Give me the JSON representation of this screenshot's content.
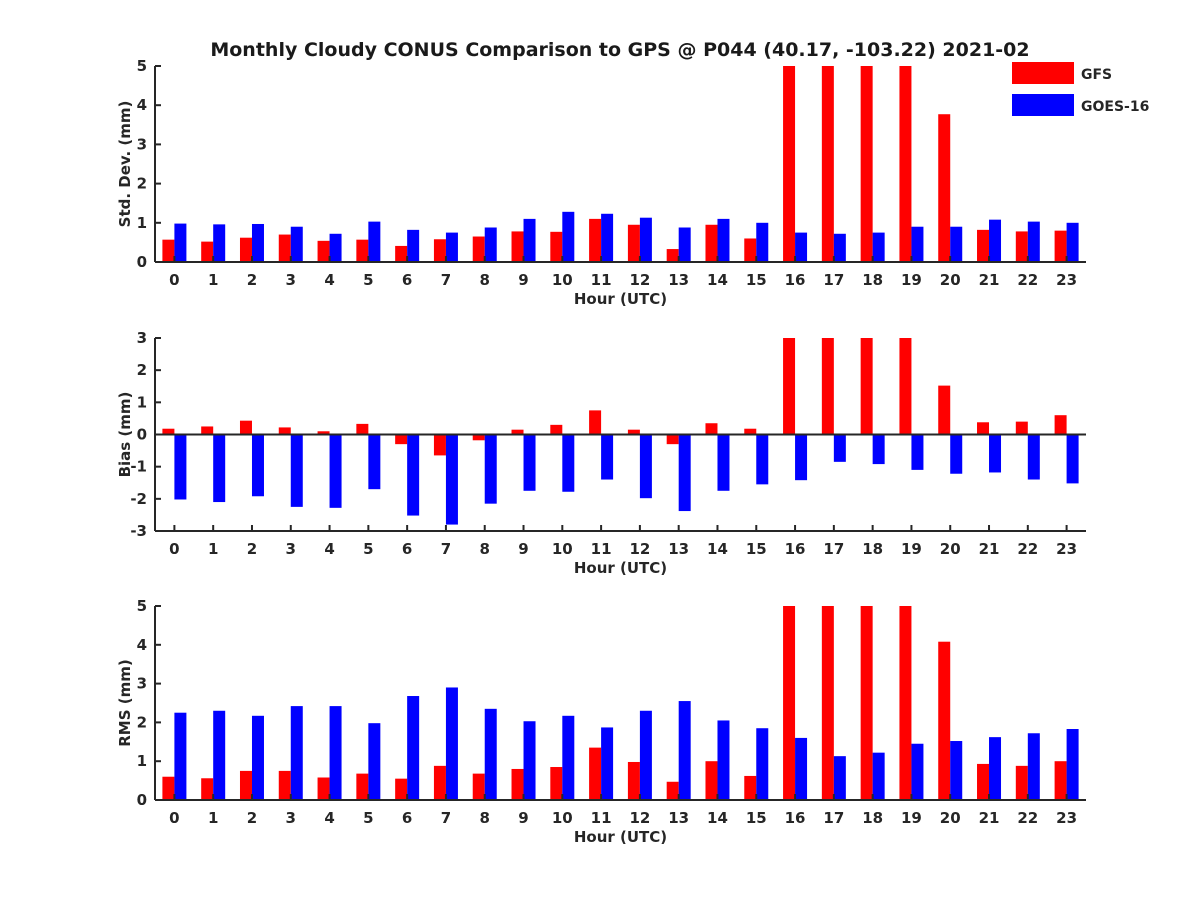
{
  "chart_data": [
    {
      "type": "bar",
      "title": "Monthly Cloudy CONUS Comparison to GPS @ P044 (40.17, -103.22) 2021-02",
      "xlabel": "Hour (UTC)",
      "ylabel": "Std. Dev. (mm)",
      "ylim": [
        0,
        5
      ],
      "yticks": [
        0,
        1,
        2,
        3,
        4,
        5
      ],
      "categories": [
        "0",
        "1",
        "2",
        "3",
        "4",
        "5",
        "6",
        "7",
        "8",
        "9",
        "10",
        "11",
        "12",
        "13",
        "14",
        "15",
        "16",
        "17",
        "18",
        "19",
        "20",
        "21",
        "22",
        "23"
      ],
      "series": [
        {
          "name": "GFS",
          "color": "#ff0000",
          "values": [
            0.57,
            0.52,
            0.62,
            0.7,
            0.54,
            0.57,
            0.41,
            0.58,
            0.65,
            0.78,
            0.77,
            1.1,
            0.95,
            0.33,
            0.95,
            0.6,
            5,
            5,
            5,
            5,
            3.77,
            0.82,
            0.78,
            0.8
          ]
        },
        {
          "name": "GOES-16",
          "color": "#0000ff",
          "values": [
            0.98,
            0.96,
            0.97,
            0.9,
            0.72,
            1.03,
            0.82,
            0.75,
            0.88,
            1.1,
            1.28,
            1.23,
            1.13,
            0.88,
            1.1,
            1.0,
            0.75,
            0.72,
            0.75,
            0.9,
            0.9,
            1.08,
            1.03,
            1.0
          ]
        }
      ]
    },
    {
      "type": "bar",
      "title": "",
      "xlabel": "Hour (UTC)",
      "ylabel": "Bias (mm)",
      "ylim": [
        -3,
        3
      ],
      "yticks": [
        -3,
        -2,
        -1,
        0,
        1,
        2,
        3
      ],
      "categories": [
        "0",
        "1",
        "2",
        "3",
        "4",
        "5",
        "6",
        "7",
        "8",
        "9",
        "10",
        "11",
        "12",
        "13",
        "14",
        "15",
        "16",
        "17",
        "18",
        "19",
        "20",
        "21",
        "22",
        "23"
      ],
      "series": [
        {
          "name": "GFS",
          "color": "#ff0000",
          "values": [
            0.18,
            0.25,
            0.43,
            0.22,
            0.1,
            0.33,
            -0.3,
            -0.65,
            -0.18,
            0.15,
            0.3,
            0.75,
            0.15,
            -0.3,
            0.35,
            0.18,
            3,
            3,
            3,
            3,
            1.52,
            0.38,
            0.4,
            0.6
          ]
        },
        {
          "name": "GOES-16",
          "color": "#0000ff",
          "values": [
            -2.02,
            -2.1,
            -1.92,
            -2.25,
            -2.28,
            -1.7,
            -2.52,
            -2.8,
            -2.15,
            -1.75,
            -1.78,
            -1.4,
            -1.98,
            -2.38,
            -1.75,
            -1.55,
            -1.42,
            -0.85,
            -0.92,
            -1.1,
            -1.22,
            -1.18,
            -1.4,
            -1.52
          ]
        }
      ]
    },
    {
      "type": "bar",
      "title": "",
      "xlabel": "Hour (UTC)",
      "ylabel": "RMS (mm)",
      "ylim": [
        0,
        5
      ],
      "yticks": [
        0,
        1,
        2,
        3,
        4,
        5
      ],
      "categories": [
        "0",
        "1",
        "2",
        "3",
        "4",
        "5",
        "6",
        "7",
        "8",
        "9",
        "10",
        "11",
        "12",
        "13",
        "14",
        "15",
        "16",
        "17",
        "18",
        "19",
        "20",
        "21",
        "22",
        "23"
      ],
      "series": [
        {
          "name": "GFS",
          "color": "#ff0000",
          "values": [
            0.6,
            0.56,
            0.75,
            0.75,
            0.58,
            0.68,
            0.55,
            0.88,
            0.68,
            0.8,
            0.85,
            1.35,
            0.98,
            0.47,
            1.0,
            0.62,
            5,
            5,
            5,
            5,
            4.08,
            0.93,
            0.88,
            1.0
          ]
        },
        {
          "name": "GOES-16",
          "color": "#0000ff",
          "values": [
            2.25,
            2.3,
            2.17,
            2.42,
            2.42,
            1.98,
            2.68,
            2.9,
            2.35,
            2.03,
            2.17,
            1.87,
            2.3,
            2.55,
            2.05,
            1.85,
            1.6,
            1.13,
            1.22,
            1.45,
            1.52,
            1.62,
            1.72,
            1.83
          ]
        }
      ]
    }
  ]
}
